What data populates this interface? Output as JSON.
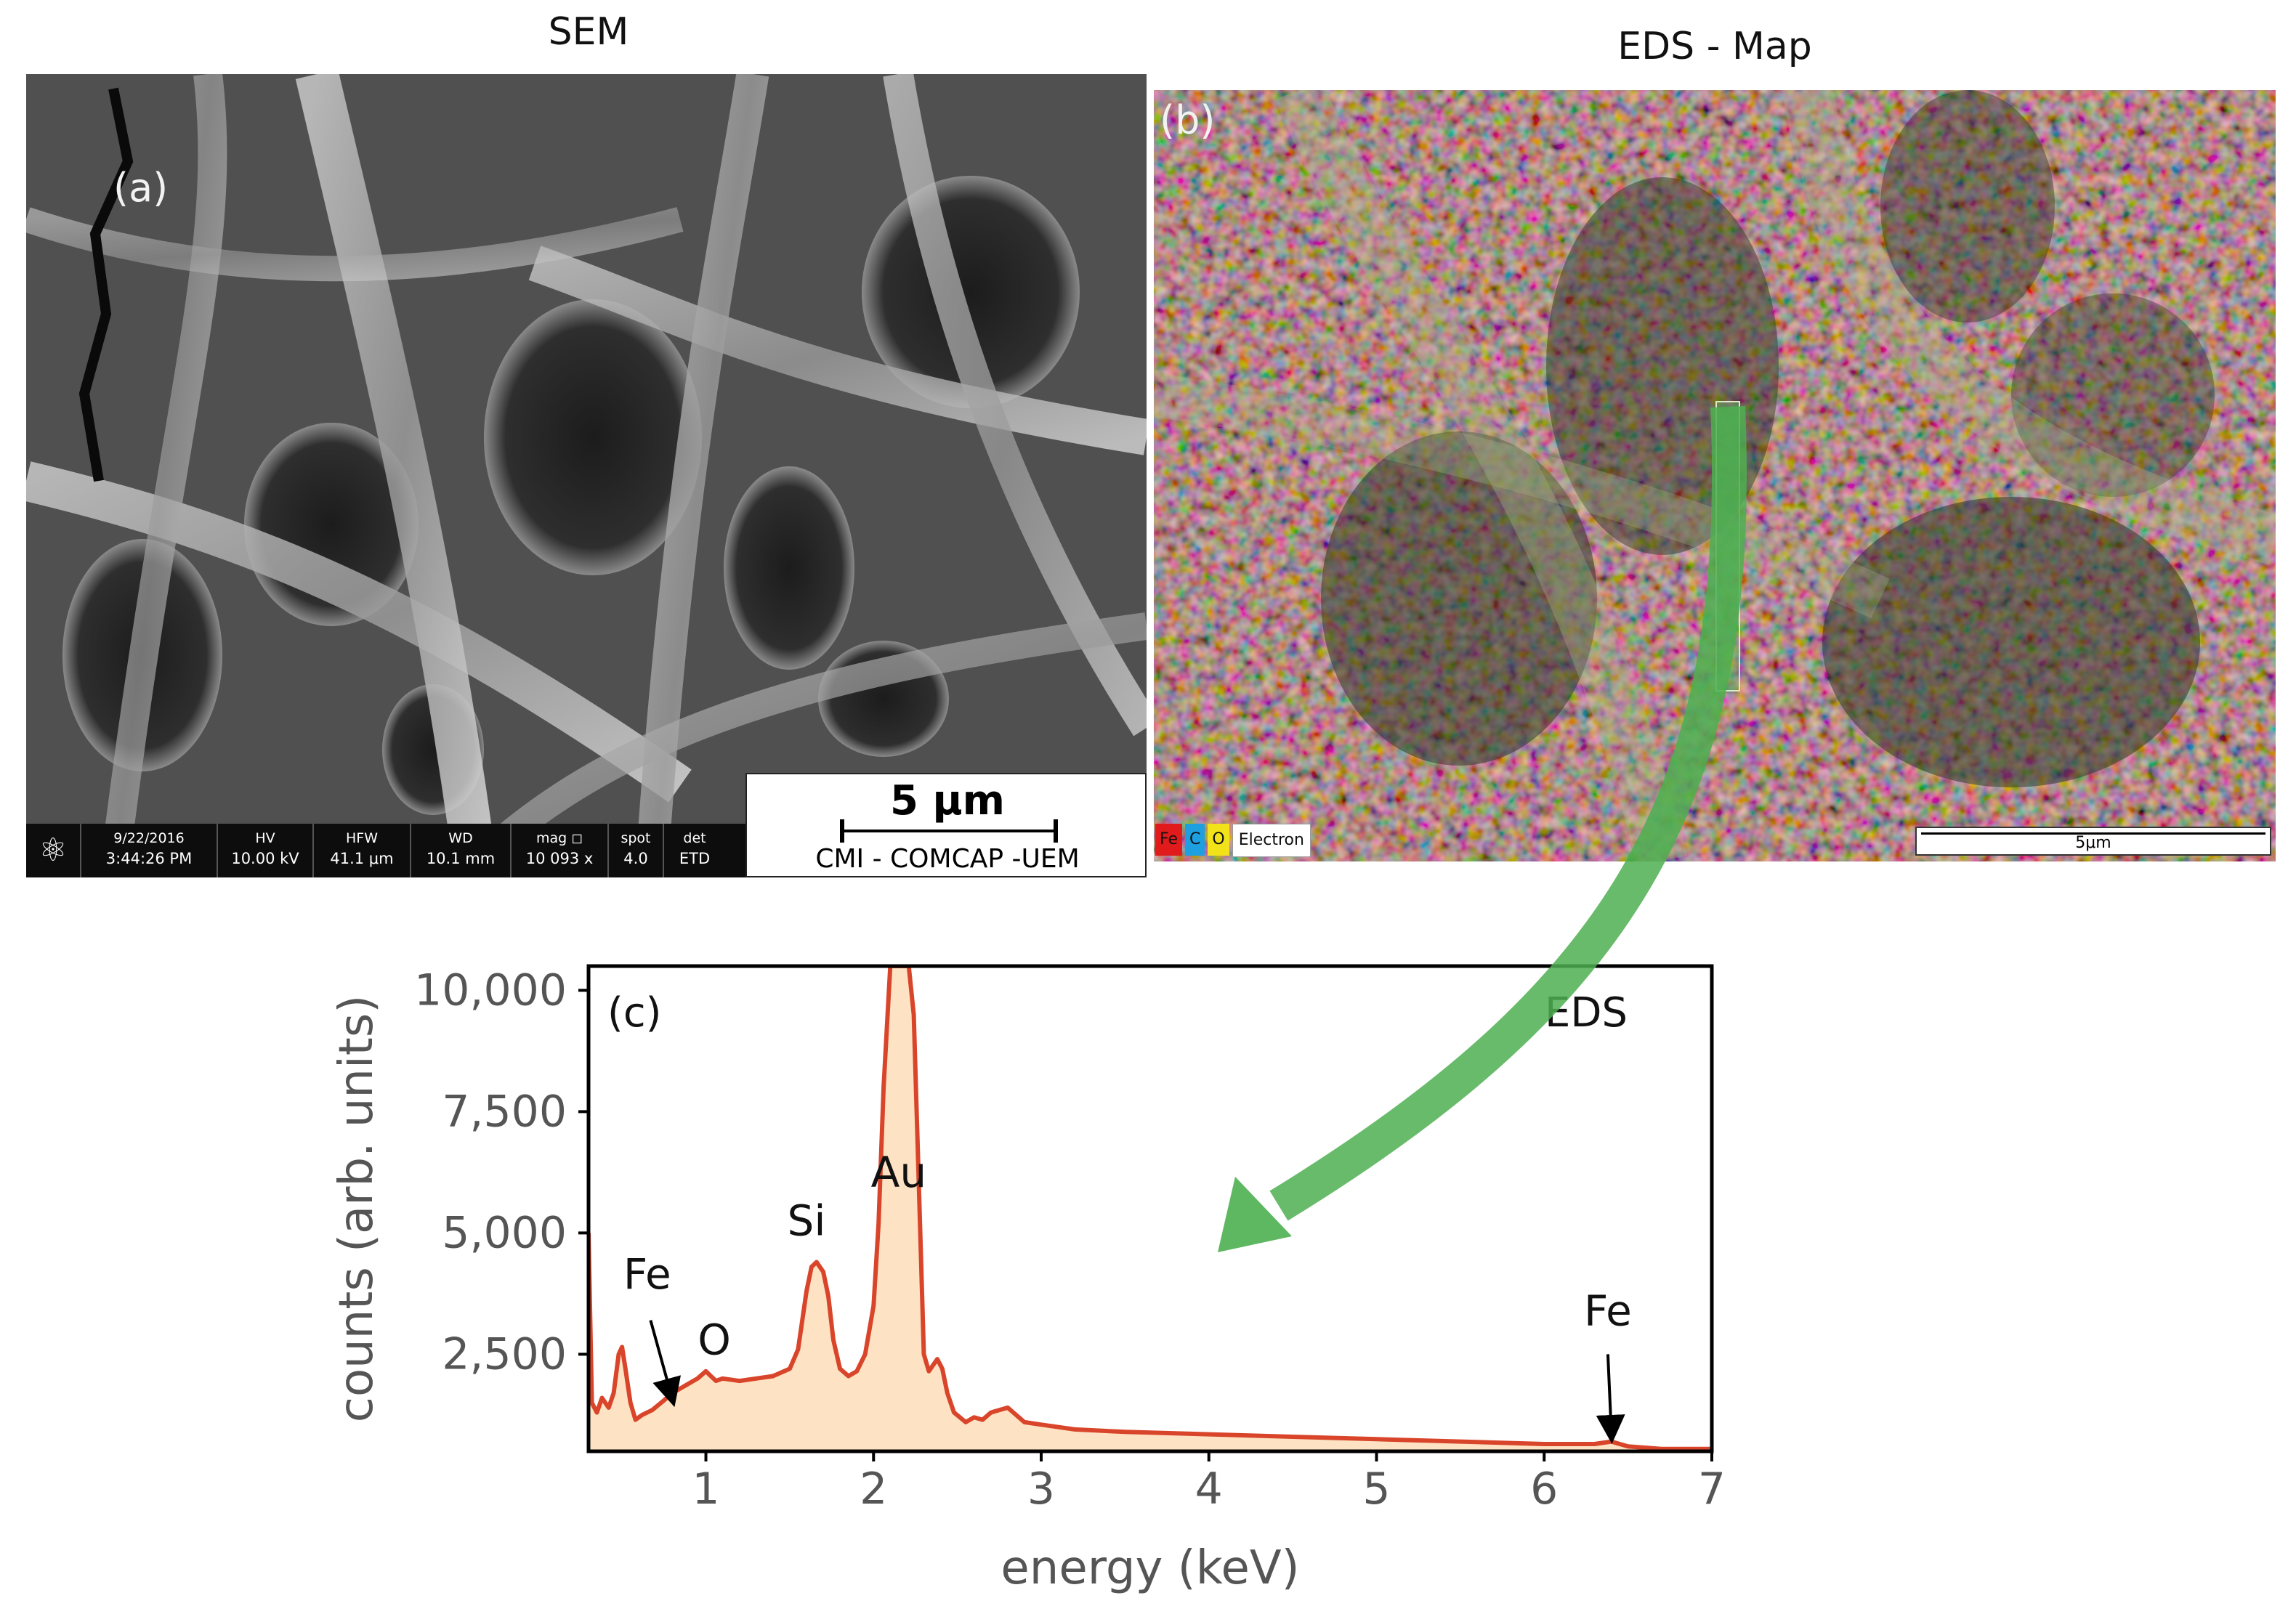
{
  "titles": {
    "sem": "SEM",
    "eds_map": "EDS - Map"
  },
  "panel_a": {
    "letter": "(a)",
    "scalebar": "5 μm",
    "lab": "CMI - COMCAP -UEM",
    "info": [
      {
        "top": "9/22/2016",
        "bottom": "3:44:26 PM"
      },
      {
        "top": "HV",
        "bottom": "10.00 kV"
      },
      {
        "top": "HFW",
        "bottom": "41.1 μm"
      },
      {
        "top": "WD",
        "bottom": "10.1 mm"
      },
      {
        "top": "mag ◻",
        "bottom": "10 093 x"
      },
      {
        "top": "spot",
        "bottom": "4.0"
      },
      {
        "top": "det",
        "bottom": "ETD"
      }
    ]
  },
  "panel_b": {
    "letter": "(b)",
    "legend": [
      {
        "label": "Fe",
        "color": "#e11b1b"
      },
      {
        "label": "C",
        "color": "#1e9fe0"
      },
      {
        "label": "O",
        "color": "#f2e21a"
      },
      {
        "label": "Electron",
        "color": "#ffffff"
      }
    ],
    "scalebar": "5μm"
  },
  "chart_data": {
    "type": "area",
    "panel_label": "(c)",
    "annotation_title": "EDS",
    "xlabel": "energy (keV)",
    "ylabel": "counts (arb. units)",
    "xlim": [
      0.3,
      7.0
    ],
    "ylim": [
      500,
      10500
    ],
    "xticks": [
      1,
      2,
      3,
      4,
      5,
      6,
      7
    ],
    "yticks": [
      2500,
      5000,
      7500,
      10000
    ],
    "ytick_labels": [
      "2,500",
      "5,000",
      "7,500",
      "10,000"
    ],
    "line_color": "#d9452a",
    "fill_color": "#fde3c4",
    "arrow_color": "#4caf50",
    "series": [
      {
        "x": [
          0.3,
          0.32,
          0.35,
          0.38,
          0.42,
          0.45,
          0.48,
          0.5,
          0.52,
          0.55,
          0.58,
          0.62,
          0.68,
          0.75,
          0.8,
          0.85,
          0.9,
          0.95,
          1.0,
          1.03,
          1.06,
          1.1,
          1.2,
          1.3,
          1.4,
          1.5,
          1.55,
          1.6,
          1.63,
          1.66,
          1.7,
          1.73,
          1.76,
          1.8,
          1.85,
          1.9,
          1.95,
          2.0,
          2.03,
          2.06,
          2.1,
          2.14,
          2.18,
          2.21,
          2.24,
          2.27,
          2.3,
          2.33,
          2.36,
          2.38,
          2.41,
          2.44,
          2.48,
          2.55,
          2.6,
          2.65,
          2.7,
          2.75,
          2.8,
          2.85,
          2.9,
          3.0,
          3.2,
          3.5,
          4.0,
          4.5,
          5.0,
          5.5,
          6.0,
          6.3,
          6.4,
          6.5,
          6.7,
          7.0
        ],
        "y": [
          5000,
          1500,
          1300,
          1600,
          1400,
          1700,
          2500,
          2650,
          2200,
          1500,
          1150,
          1250,
          1350,
          1550,
          1700,
          1800,
          1900,
          2000,
          2150,
          2050,
          1950,
          2000,
          1950,
          2000,
          2050,
          2200,
          2600,
          3800,
          4300,
          4400,
          4200,
          3700,
          2800,
          2200,
          2050,
          2150,
          2500,
          3500,
          5200,
          8000,
          10500,
          10500,
          10500,
          10500,
          9500,
          6000,
          2500,
          2150,
          2300,
          2400,
          2200,
          1700,
          1300,
          1100,
          1200,
          1150,
          1300,
          1350,
          1400,
          1250,
          1100,
          1050,
          950,
          900,
          850,
          800,
          750,
          700,
          650,
          650,
          700,
          600,
          550,
          550
        ]
      }
    ],
    "peak_labels": [
      {
        "text": "Si",
        "x": 1.6,
        "y": 4950
      },
      {
        "text": "Au",
        "x": 2.15,
        "y": 5950
      },
      {
        "text": "Fe",
        "x": 0.65,
        "y": 3850
      },
      {
        "text": "O",
        "x": 1.05,
        "y": 2500
      },
      {
        "text": "Fe",
        "x": 6.38,
        "y": 3100
      }
    ]
  }
}
